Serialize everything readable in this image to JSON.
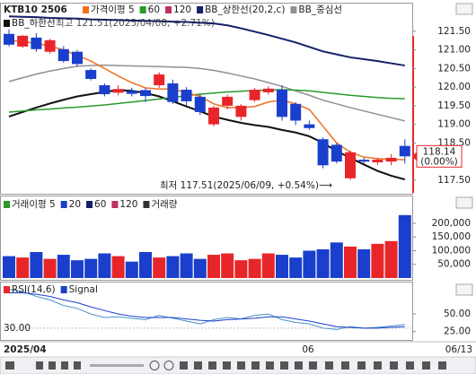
{
  "chart_data": [
    {
      "type": "candlestick",
      "title": "KTB10 2506",
      "legend": [
        {
          "name": "가격이평 5",
          "color": "#f07020"
        },
        {
          "name": "60",
          "color": "#2a9a2a"
        },
        {
          "name": "120",
          "color": "#c03060"
        },
        {
          "name": "BB_상한선(20,2,c)",
          "color": "#15206a"
        },
        {
          "name": "BB_중심선",
          "color": "#909090"
        },
        {
          "name": "BB_하한선",
          "color": "#111111"
        }
      ],
      "up_color": "#e8262a",
      "down_color": "#1a3fcc",
      "open": [
        121.43,
        121.09,
        121.33,
        120.95,
        121.02,
        120.95,
        120.46,
        120.05,
        119.85,
        119.9,
        119.92,
        120.05,
        120.1,
        119.93,
        119.74,
        119.0,
        119.5,
        119.2,
        119.65,
        119.86,
        119.93,
        119.55,
        119.0,
        118.6,
        118.45,
        117.55,
        118.05,
        117.98,
        118.0,
        118.42
      ],
      "high": [
        121.55,
        121.4,
        121.45,
        121.3,
        121.1,
        121.0,
        120.5,
        120.1,
        120.05,
        119.98,
        119.98,
        120.4,
        120.2,
        120.0,
        119.8,
        119.5,
        119.8,
        119.55,
        119.98,
        120.02,
        120.05,
        119.6,
        119.1,
        118.65,
        118.5,
        118.3,
        118.1,
        118.1,
        118.2,
        118.6
      ],
      "low": [
        121.09,
        121.05,
        120.95,
        120.9,
        120.65,
        120.55,
        120.18,
        119.75,
        119.78,
        119.75,
        119.6,
        119.98,
        119.55,
        119.5,
        119.25,
        118.95,
        119.4,
        119.1,
        119.6,
        119.8,
        119.1,
        118.98,
        118.85,
        117.82,
        117.95,
        117.51,
        117.95,
        117.9,
        117.9,
        117.95
      ],
      "close": [
        121.14,
        121.38,
        121.02,
        121.26,
        120.7,
        120.62,
        120.22,
        119.81,
        119.95,
        119.82,
        119.76,
        120.34,
        119.6,
        119.62,
        119.33,
        119.45,
        119.74,
        119.5,
        119.93,
        119.96,
        119.2,
        119.1,
        118.9,
        117.9,
        118.0,
        118.25,
        118.0,
        118.05,
        118.1,
        118.14
      ],
      "series": [
        {
          "name": "가격이평 5",
          "color": "#f07020",
          "values": [
            121.26,
            121.22,
            121.18,
            121.1,
            121.0,
            120.85,
            120.7,
            120.5,
            120.3,
            120.12,
            119.98,
            119.95,
            119.95,
            119.85,
            119.75,
            119.55,
            119.45,
            119.45,
            119.48,
            119.6,
            119.65,
            119.55,
            119.4,
            118.95,
            118.5,
            118.25,
            118.12,
            118.08,
            118.06,
            118.05
          ]
        },
        {
          "name": "60",
          "color": "#2a9a2a",
          "values": [
            119.33,
            119.36,
            119.39,
            119.41,
            119.44,
            119.46,
            119.49,
            119.52,
            119.56,
            119.6,
            119.64,
            119.68,
            119.72,
            119.77,
            119.81,
            119.84,
            119.87,
            119.89,
            119.91,
            119.92,
            119.93,
            119.92,
            119.9,
            119.86,
            119.82,
            119.78,
            119.75,
            119.72,
            119.7,
            119.69
          ]
        },
        {
          "name": "BB_상한선(20,2,c)",
          "color": "#15206a",
          "values": [
            121.9,
            121.89,
            121.88,
            121.86,
            121.85,
            121.84,
            121.82,
            121.81,
            121.8,
            121.79,
            121.78,
            121.77,
            121.76,
            121.75,
            121.73,
            121.71,
            121.66,
            121.58,
            121.49,
            121.4,
            121.3,
            121.2,
            121.08,
            120.96,
            120.88,
            120.8,
            120.75,
            120.7,
            120.64,
            120.58
          ]
        },
        {
          "name": "BB_중심선",
          "color": "#909090",
          "values": [
            120.15,
            120.25,
            120.35,
            120.43,
            120.5,
            120.56,
            120.58,
            120.59,
            120.58,
            120.57,
            120.56,
            120.55,
            120.54,
            120.53,
            120.5,
            120.45,
            120.38,
            120.3,
            120.22,
            120.12,
            120.02,
            119.9,
            119.78,
            119.65,
            119.55,
            119.45,
            119.36,
            119.27,
            119.18,
            119.09
          ]
        },
        {
          "name": "BB_하한선",
          "color": "#111111",
          "values": [
            119.21,
            119.33,
            119.45,
            119.56,
            119.66,
            119.75,
            119.81,
            119.87,
            119.92,
            119.9,
            119.84,
            119.75,
            119.62,
            119.48,
            119.35,
            119.21,
            119.12,
            119.04,
            118.98,
            118.93,
            118.85,
            118.78,
            118.68,
            118.5,
            118.28,
            118.1,
            117.92,
            117.75,
            117.62,
            117.52
          ]
        }
      ],
      "ylim": [
        117.16,
        122.22
      ],
      "yticks": [
        {
          "value": 121.5,
          "label": "121.50"
        },
        {
          "value": 121,
          "label": "121.00"
        },
        {
          "value": 120.5,
          "label": "120.50"
        },
        {
          "value": 120,
          "label": "120.00"
        },
        {
          "value": 119.5,
          "label": "119.50"
        },
        {
          "value": 119,
          "label": "119.00"
        },
        {
          "value": 118.5,
          "label": "118.50"
        },
        {
          "value": 117.5,
          "label": "117.50"
        }
      ],
      "max_annotation": "최고 121.51(2025/04/08, +2.71%)",
      "min_annotation": "최저 117.51(2025/06/09, +0.54%)⟶",
      "last_price": {
        "value": 118.14,
        "label": "118.14",
        "change": "(0.00%)"
      }
    },
    {
      "type": "bar",
      "legend": [
        {
          "name": "거래이평 5",
          "color": "#2a9a2a"
        },
        {
          "name": "20",
          "color": "#1a3fcc"
        },
        {
          "name": "60",
          "color": "#15206a"
        },
        {
          "name": "120",
          "color": "#c03060"
        },
        {
          "name": "거래량",
          "color": "#333333"
        }
      ],
      "values": [
        80000,
        75000,
        95000,
        70000,
        85000,
        65000,
        70000,
        90000,
        80000,
        60000,
        95000,
        75000,
        80000,
        90000,
        70000,
        85000,
        90000,
        65000,
        70000,
        90000,
        85000,
        75000,
        100000,
        105000,
        130000,
        115000,
        105000,
        125000,
        135000,
        230000
      ],
      "ylim": [
        0,
        295000
      ],
      "yticks": [
        {
          "value": 200000,
          "label": "200,000"
        },
        {
          "value": 150000,
          "label": "150,000"
        },
        {
          "value": 100000,
          "label": "100,000"
        },
        {
          "value": 50000,
          "label": "50,000"
        }
      ]
    },
    {
      "type": "line",
      "legend": [
        {
          "name": "RSI(14,6)",
          "color": "#e8262a"
        },
        {
          "name": "Signal",
          "color": "#1a3fcc"
        }
      ],
      "series": [
        {
          "name": "RSI(14,6)",
          "color": "#4a90c8",
          "values": [
            85,
            82,
            75,
            70,
            62,
            58,
            50,
            45,
            46,
            44,
            42,
            48,
            44,
            40,
            36,
            42,
            45,
            43,
            48,
            50,
            42,
            38,
            36,
            30,
            28,
            32,
            30,
            31,
            33,
            35
          ]
        },
        {
          "name": "Signal",
          "color": "#1a3fcc",
          "values": [
            80,
            80,
            78,
            75,
            70,
            66,
            60,
            55,
            50,
            47,
            45,
            45,
            45,
            43,
            41,
            40,
            42,
            43,
            44,
            46,
            46,
            43,
            40,
            36,
            32,
            31,
            30,
            30,
            31,
            32
          ]
        }
      ],
      "level": {
        "value": 30,
        "label": "30.00"
      },
      "ylim": [
        14.5,
        93.4
      ],
      "yticks": [
        {
          "value": 50,
          "label": "50.00"
        },
        {
          "value": 25,
          "label": "25.00"
        }
      ]
    }
  ],
  "time_axis": {
    "start": "2025/04",
    "month": "06",
    "end": "06/13"
  }
}
